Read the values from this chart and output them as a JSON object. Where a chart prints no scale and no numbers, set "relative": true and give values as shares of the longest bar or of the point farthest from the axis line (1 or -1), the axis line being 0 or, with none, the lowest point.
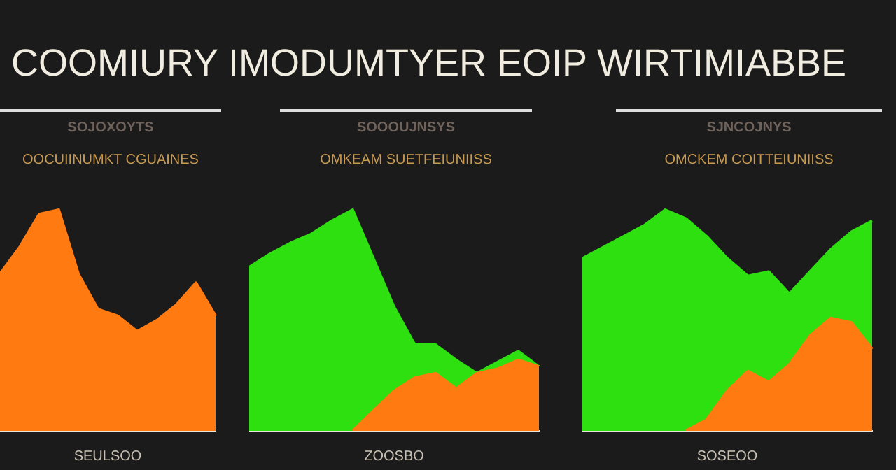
{
  "chart_data": [
    {
      "type": "other",
      "title": "COOMIURY IMODUMTYER EOIP WIRTIMIABBE"
    },
    {
      "type": "area",
      "relative": true,
      "title": "SOJOXOYTS",
      "subtitle": "OOCUIINUMKT CGUAINES",
      "xlabel": "SEULSOO",
      "categories": [
        null,
        null,
        null,
        null,
        null,
        null,
        null,
        null,
        null,
        null,
        null,
        null
      ],
      "series": [
        {
          "color": "#ff7a10",
          "values": [
            0.71,
            0.83,
            0.98,
            1,
            0.71,
            0.55,
            0.52,
            0.45,
            0.5,
            0.57,
            0.67,
            0.52
          ]
        }
      ]
    },
    {
      "type": "area",
      "relative": true,
      "title": "SOOOUJNSYS",
      "subtitle": "OMKEAM SUETFEIUNIISS",
      "xlabel": "ZOOSBO",
      "categories": [
        null,
        null,
        null,
        null,
        null,
        null,
        null,
        null,
        null,
        null,
        null,
        null,
        null,
        null,
        null
      ],
      "series": [
        {
          "color": "#2ee010",
          "values": [
            0.74,
            0.8,
            0.85,
            0.89,
            0.95,
            1,
            0.78,
            0.56,
            0.39,
            0.39,
            0.32,
            0.26,
            0.31,
            0.36,
            0.29
          ]
        },
        {
          "color": "#ff7a10",
          "values": [
            null,
            null,
            null,
            null,
            null,
            0,
            0.09,
            0.18,
            0.24,
            0.26,
            0.19,
            0.26,
            0.28,
            0.32,
            0.29
          ]
        }
      ]
    },
    {
      "type": "area",
      "relative": true,
      "title": "SJNCOJNYS",
      "subtitle": "OMCKEM COITTEIUNIISS",
      "xlabel": "SOSEOO",
      "categories": [
        null,
        null,
        null,
        null,
        null,
        null,
        null,
        null,
        null,
        null,
        null,
        null,
        null,
        null,
        null
      ],
      "series": [
        {
          "color": "#2ee010",
          "values": [
            0.78,
            0.83,
            0.88,
            0.93,
            1,
            0.96,
            0.88,
            0.78,
            0.7,
            0.72,
            0.62,
            0.72,
            0.82,
            0.9,
            0.95
          ]
        },
        {
          "color": "#ff7a10",
          "values": [
            null,
            null,
            null,
            null,
            null,
            0,
            0.05,
            0.18,
            0.27,
            0.22,
            0.3,
            0.43,
            0.51,
            0.49,
            0.37
          ]
        }
      ]
    }
  ]
}
